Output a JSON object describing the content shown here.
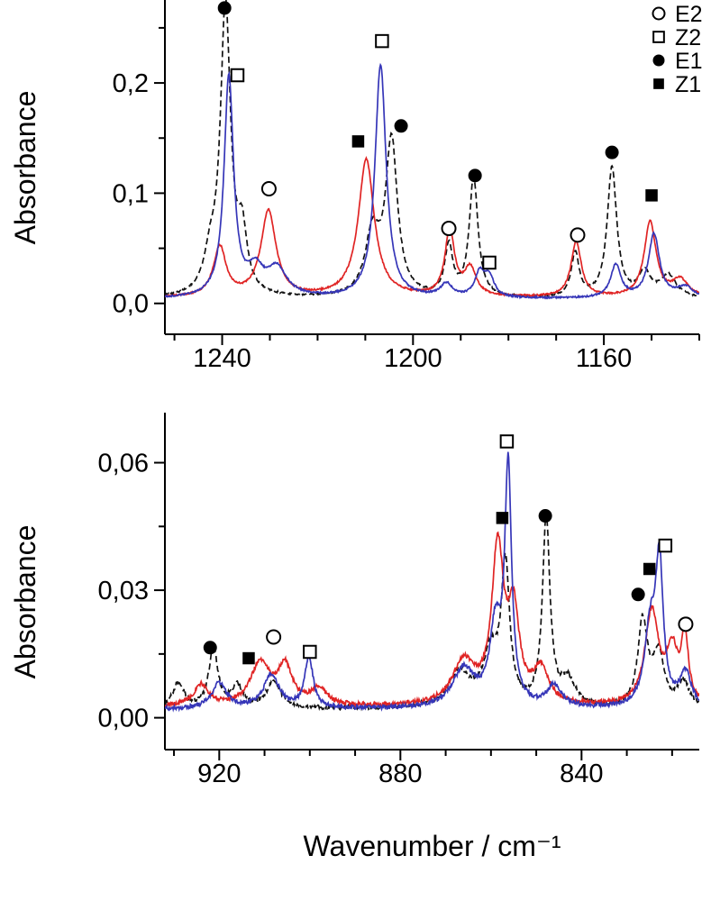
{
  "figure": {
    "background": "#ffffff",
    "axis_color": "#000000"
  },
  "legend": {
    "items": [
      {
        "label": "E2",
        "marker": "circle-open"
      },
      {
        "label": "Z2",
        "marker": "square-open"
      },
      {
        "label": "E1",
        "marker": "circle-filled"
      },
      {
        "label": "Z1",
        "marker": "square-filled"
      }
    ]
  },
  "chart_data": [
    {
      "type": "line",
      "panel": "top",
      "ylabel": "Absorbance",
      "x_range": [
        1252,
        1140
      ],
      "y_range": [
        -0.028,
        0.272
      ],
      "x_ticks": [
        1240,
        1200,
        1160
      ],
      "x_minor_step": 10,
      "y_ticks": [
        0.0,
        0.1,
        0.2
      ],
      "y_tick_labels": [
        "0,0",
        "0,1",
        "0,2"
      ],
      "y_minor_ticks": [
        0.05,
        0.15,
        0.25
      ],
      "noise_amp": 0.0015,
      "legend_in_panel": true,
      "series": [
        {
          "name": "spectrum-black",
          "color": "#111111",
          "dashed": true,
          "baseline": 0.004,
          "peaks": [
            [
              1242.5,
              0.03,
              1.5
            ],
            [
              1239.3,
              0.262,
              1.3
            ],
            [
              1235.8,
              0.05,
              1.2
            ],
            [
              1208.5,
              0.055,
              1.8
            ],
            [
              1204.5,
              0.14,
              1.5
            ],
            [
              1192.5,
              0.045,
              1.0
            ],
            [
              1187.3,
              0.108,
              1.1
            ],
            [
              1166.0,
              0.04,
              1.0
            ],
            [
              1158.3,
              0.118,
              1.2
            ],
            [
              1151.5,
              0.022,
              1.5
            ],
            [
              1146.5,
              0.02,
              2.0
            ]
          ]
        },
        {
          "name": "spectrum-red",
          "color": "#e02424",
          "dashed": false,
          "baseline": 0.005,
          "peaks": [
            [
              1240.5,
              0.045,
              1.6
            ],
            [
              1230.3,
              0.078,
              1.9
            ],
            [
              1209.8,
              0.125,
              2.0
            ],
            [
              1192.3,
              0.06,
              1.2
            ],
            [
              1188.0,
              0.025,
              1.5
            ],
            [
              1165.8,
              0.05,
              1.3
            ],
            [
              1150.3,
              0.068,
              1.5
            ],
            [
              1144.0,
              0.015,
              2.0
            ]
          ]
        },
        {
          "name": "spectrum-blue",
          "color": "#3636b8",
          "dashed": false,
          "baseline": 0.004,
          "peaks": [
            [
              1238.6,
              0.2,
              1.2
            ],
            [
              1233.0,
              0.022,
              2.0
            ],
            [
              1228.5,
              0.025,
              2.5
            ],
            [
              1206.8,
              0.212,
              1.4
            ],
            [
              1193.0,
              0.012,
              1.5
            ],
            [
              1186.0,
              0.022,
              1.2
            ],
            [
              1184.0,
              0.018,
              1.2
            ],
            [
              1157.5,
              0.03,
              1.3
            ],
            [
              1149.5,
              0.058,
              1.4
            ],
            [
              1143.0,
              0.01,
              2.0
            ]
          ]
        }
      ],
      "annotations": [
        {
          "marker": "circle-filled",
          "x": 1239.5,
          "y": 0.268
        },
        {
          "marker": "square-open",
          "x": 1236.8,
          "y": 0.207
        },
        {
          "marker": "circle-open",
          "x": 1230.2,
          "y": 0.104
        },
        {
          "marker": "square-open",
          "x": 1206.5,
          "y": 0.238
        },
        {
          "marker": "square-filled",
          "x": 1211.5,
          "y": 0.147
        },
        {
          "marker": "circle-filled",
          "x": 1202.5,
          "y": 0.161
        },
        {
          "marker": "circle-open",
          "x": 1192.5,
          "y": 0.068
        },
        {
          "marker": "circle-filled",
          "x": 1187.0,
          "y": 0.116
        },
        {
          "marker": "square-open",
          "x": 1184.0,
          "y": 0.037
        },
        {
          "marker": "circle-open",
          "x": 1165.5,
          "y": 0.062
        },
        {
          "marker": "circle-filled",
          "x": 1158.3,
          "y": 0.137
        },
        {
          "marker": "square-filled",
          "x": 1150.0,
          "y": 0.098
        }
      ]
    },
    {
      "type": "line",
      "panel": "bottom",
      "ylabel": "Absorbance",
      "xlabel": "Wavenumber / cm⁻¹",
      "x_range": [
        932,
        814
      ],
      "y_range": [
        -0.0075,
        0.0705
      ],
      "x_ticks": [
        920,
        880,
        840
      ],
      "x_minor_step": 10,
      "y_ticks": [
        0.0,
        0.03,
        0.06
      ],
      "y_tick_labels": [
        "0,00",
        "0,03",
        "0,06"
      ],
      "y_minor_ticks": [
        0.015,
        0.045
      ],
      "noise_amp": 0.001,
      "legend_in_panel": false,
      "series": [
        {
          "name": "spectrum-black",
          "color": "#111111",
          "dashed": true,
          "baseline": 0.002,
          "peaks": [
            [
              929,
              0.006,
              1.5
            ],
            [
              921.3,
              0.014,
              1.2
            ],
            [
              916,
              0.005,
              1.5
            ],
            [
              908,
              0.006,
              2
            ],
            [
              867,
              0.008,
              3
            ],
            [
              860,
              0.012,
              2
            ],
            [
              856.8,
              0.032,
              1.1
            ],
            [
              847.8,
              0.044,
              1.0
            ],
            [
              843,
              0.006,
              2
            ],
            [
              826.5,
              0.02,
              1.3
            ],
            [
              823,
              0.012,
              1.5
            ],
            [
              817.5,
              0.006,
              1.5
            ]
          ]
        },
        {
          "name": "spectrum-red",
          "color": "#e02424",
          "dashed": false,
          "baseline": 0.0025,
          "peaks": [
            [
              924,
              0.005,
              2
            ],
            [
              911,
              0.01,
              2.5
            ],
            [
              905.5,
              0.009,
              2
            ],
            [
              898,
              0.004,
              2
            ],
            [
              866,
              0.01,
              3
            ],
            [
              858.5,
              0.036,
              1.6
            ],
            [
              855,
              0.02,
              1.5
            ],
            [
              849,
              0.008,
              2
            ],
            [
              824.5,
              0.022,
              1.8
            ],
            [
              820,
              0.012,
              1.5
            ],
            [
              817.2,
              0.016,
              0.9
            ]
          ]
        },
        {
          "name": "spectrum-blue",
          "color": "#3636b8",
          "dashed": false,
          "baseline": 0.002,
          "peaks": [
            [
              920,
              0.006,
              2
            ],
            [
              908.5,
              0.008,
              2
            ],
            [
              900.2,
              0.012,
              1.1
            ],
            [
              866,
              0.009,
              3
            ],
            [
              859,
              0.018,
              1.5
            ],
            [
              856.2,
              0.055,
              0.9
            ],
            [
              846,
              0.005,
              2
            ],
            [
              824.8,
              0.018,
              1.5
            ],
            [
              822.8,
              0.032,
              1.0
            ],
            [
              817,
              0.008,
              1.5
            ]
          ]
        }
      ],
      "annotations": [
        {
          "marker": "circle-filled",
          "x": 922.0,
          "y": 0.0165
        },
        {
          "marker": "square-filled",
          "x": 913.5,
          "y": 0.014
        },
        {
          "marker": "circle-open",
          "x": 908.0,
          "y": 0.019
        },
        {
          "marker": "square-open",
          "x": 900.0,
          "y": 0.0155
        },
        {
          "marker": "square-open",
          "x": 856.5,
          "y": 0.065
        },
        {
          "marker": "square-filled",
          "x": 857.5,
          "y": 0.047
        },
        {
          "marker": "circle-filled",
          "x": 848.0,
          "y": 0.0475
        },
        {
          "marker": "circle-filled",
          "x": 827.5,
          "y": 0.029
        },
        {
          "marker": "square-filled",
          "x": 825.0,
          "y": 0.035
        },
        {
          "marker": "square-open",
          "x": 821.5,
          "y": 0.0405
        },
        {
          "marker": "circle-open",
          "x": 817.0,
          "y": 0.022
        }
      ]
    }
  ]
}
